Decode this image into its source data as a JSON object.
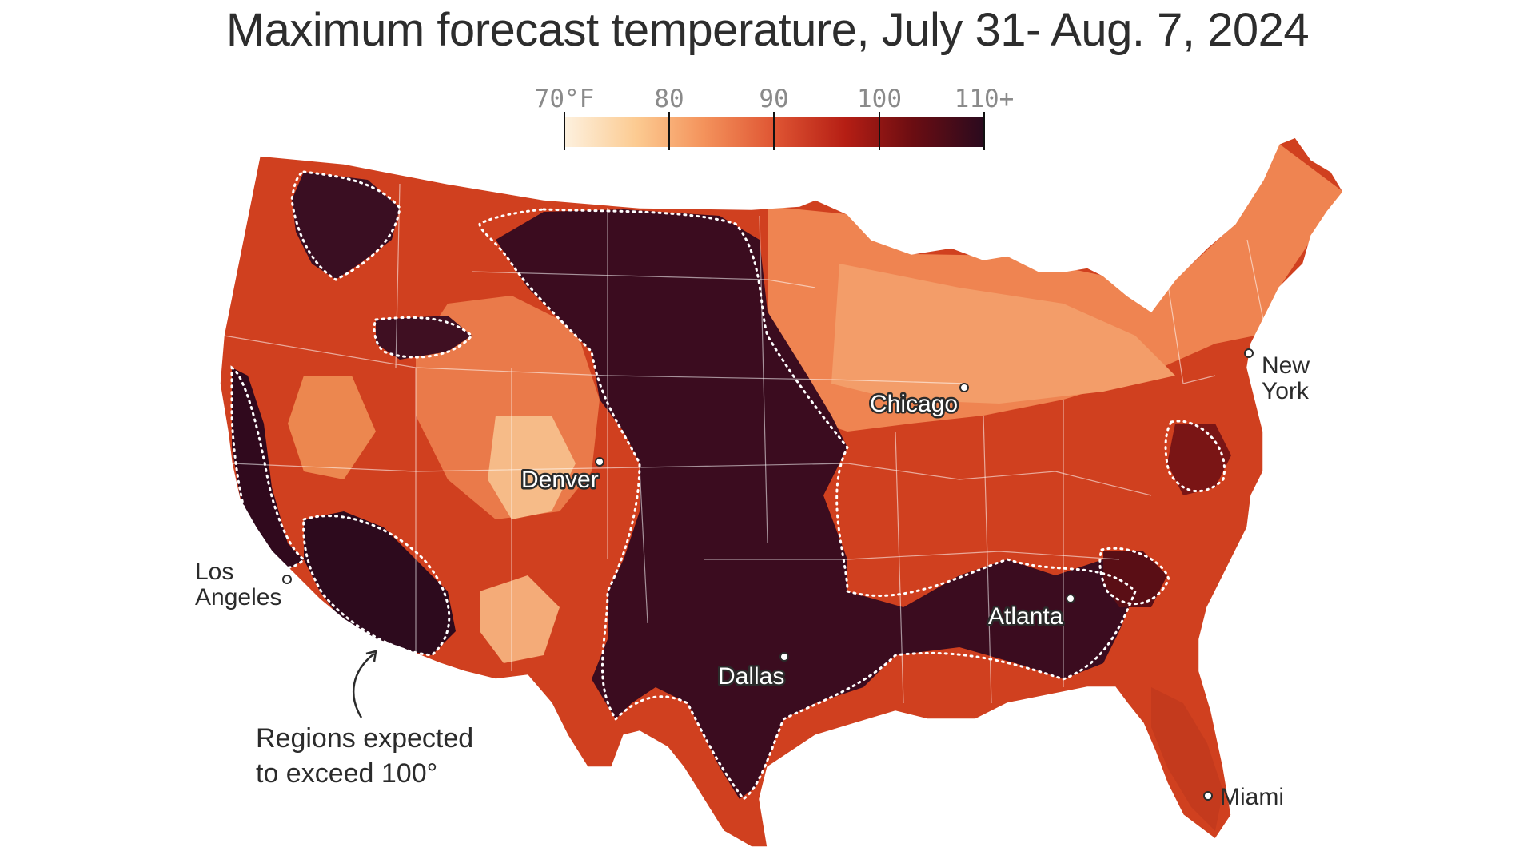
{
  "title": "Maximum forecast temperature, July 31- Aug. 7, 2024",
  "legend": {
    "ticks": [
      {
        "value": 70,
        "label": "70°F"
      },
      {
        "value": 80,
        "label": "80"
      },
      {
        "value": 90,
        "label": "90"
      },
      {
        "value": 100,
        "label": "100"
      },
      {
        "value": 110,
        "label": "110+"
      }
    ],
    "colors": [
      "#fdf1df",
      "#fccb92",
      "#f4935c",
      "#df5533",
      "#b51e14",
      "#6b0d12",
      "#2a0a1e"
    ]
  },
  "cities": [
    {
      "name": "Denver",
      "label": "Denver"
    },
    {
      "name": "Chicago",
      "label": "Chicago"
    },
    {
      "name": "Dallas",
      "label": "Dallas"
    },
    {
      "name": "Atlanta",
      "label": "Atlanta"
    },
    {
      "name": "Los Angeles",
      "label_line1": "Los",
      "label_line2": "Angeles"
    },
    {
      "name": "New York",
      "label_line1": "New",
      "label_line2": "York"
    },
    {
      "name": "Miami",
      "label": "Miami"
    }
  ],
  "annotation": {
    "line1": "Regions expected",
    "line2": "to exceed 100°"
  },
  "colors": {
    "hot_region": "#3a0d1c",
    "warm_region": "#c8321c",
    "mild_region": "#ef8a55",
    "outline": "#ffffff"
  }
}
